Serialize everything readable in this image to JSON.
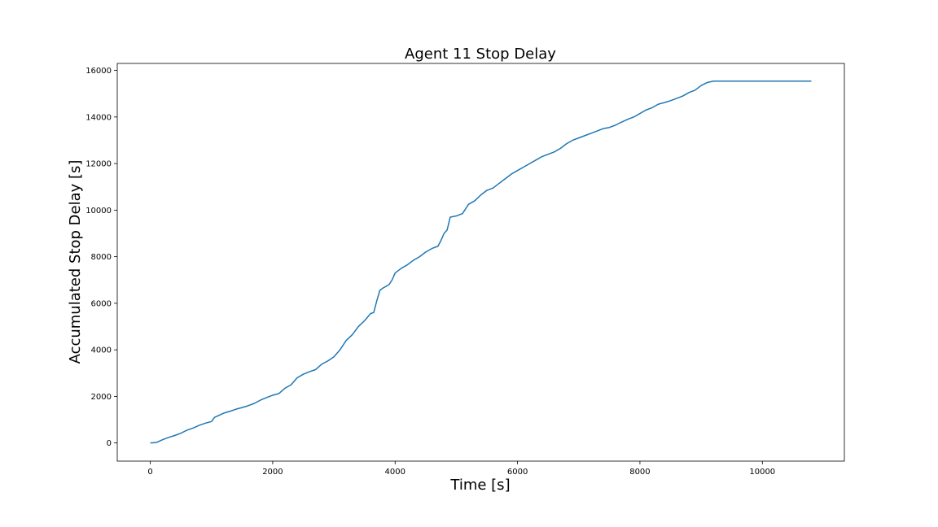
{
  "chart_data": {
    "type": "line",
    "title": "Agent 11 Stop Delay",
    "xlabel": "Time [s]",
    "ylabel": "Accumulated Stop Delay [s]",
    "xlim": [
      -540,
      11340
    ],
    "ylim": [
      -780,
      16300
    ],
    "xticks": [
      0,
      2000,
      4000,
      6000,
      8000,
      10000
    ],
    "yticks": [
      0,
      2000,
      4000,
      6000,
      8000,
      10000,
      12000,
      14000,
      16000
    ],
    "grid": false,
    "line_color": "#1f77b4",
    "series": [
      {
        "x": [
          0,
          100,
          200,
          300,
          400,
          500,
          600,
          700,
          800,
          900,
          1000,
          1050,
          1100,
          1200,
          1300,
          1400,
          1500,
          1600,
          1700,
          1800,
          1900,
          2000,
          2100,
          2200,
          2300,
          2400,
          2500,
          2600,
          2700,
          2800,
          2900,
          3000,
          3100,
          3200,
          3300,
          3400,
          3500,
          3600,
          3650,
          3700,
          3750,
          3800,
          3900,
          3950,
          4000,
          4100,
          4200,
          4300,
          4400,
          4500,
          4600,
          4700,
          4750,
          4800,
          4850,
          4900,
          5000,
          5050,
          5100,
          5200,
          5300,
          5400,
          5500,
          5600,
          5700,
          5800,
          5900,
          6000,
          6100,
          6200,
          6300,
          6400,
          6500,
          6600,
          6700,
          6800,
          6900,
          7000,
          7100,
          7200,
          7300,
          7400,
          7500,
          7600,
          7700,
          7800,
          7900,
          8000,
          8100,
          8200,
          8300,
          8400,
          8500,
          8600,
          8700,
          8800,
          8900,
          9000,
          9100,
          9200,
          9300,
          10800
        ],
        "y": [
          0,
          20,
          140,
          240,
          320,
          420,
          550,
          640,
          760,
          850,
          920,
          1100,
          1160,
          1280,
          1360,
          1450,
          1520,
          1600,
          1700,
          1840,
          1950,
          2050,
          2120,
          2350,
          2500,
          2800,
          2950,
          3060,
          3150,
          3380,
          3520,
          3700,
          4000,
          4400,
          4650,
          5000,
          5250,
          5560,
          5600,
          6100,
          6550,
          6650,
          6800,
          7000,
          7300,
          7500,
          7650,
          7850,
          8000,
          8200,
          8350,
          8450,
          8700,
          9000,
          9150,
          9700,
          9750,
          9800,
          9850,
          10250,
          10400,
          10650,
          10850,
          10950,
          11150,
          11350,
          11550,
          11700,
          11850,
          12000,
          12150,
          12300,
          12400,
          12500,
          12650,
          12850,
          13000,
          13100,
          13200,
          13300,
          13400,
          13500,
          13550,
          13650,
          13780,
          13900,
          14000,
          14150,
          14300,
          14400,
          14550,
          14620,
          14700,
          14800,
          14900,
          15050,
          15150,
          15350,
          15480,
          15540,
          15540,
          15540
        ]
      }
    ]
  }
}
